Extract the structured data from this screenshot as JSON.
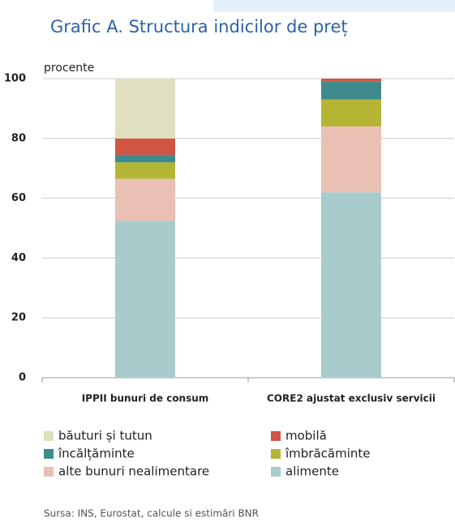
{
  "chart_data": {
    "type": "stacked_bar",
    "title": "Grafic A. Structura indicilor de preț",
    "y_label": "procente",
    "source": "Sursa: INS, Eurostat, calcule si estimări BNR",
    "categories": [
      "IPPII bunuri de consum",
      "CORE2 ajustat exclusiv servicii"
    ],
    "series": [
      {
        "name": "băuturi și tutun",
        "color": "#dfe0bf",
        "values": [
          20,
          0
        ]
      },
      {
        "name": "mobilă",
        "color": "#d05545",
        "values": [
          5.5,
          1
        ]
      },
      {
        "name": "încălțăminte",
        "color": "#3f8a8c",
        "values": [
          2.5,
          6
        ]
      },
      {
        "name": "îmbrăcăminte",
        "color": "#b5b535",
        "values": [
          5.5,
          9
        ]
      },
      {
        "name": "alte bunuri nealimentare",
        "color": "#ebc0b4",
        "values": [
          14,
          22
        ]
      },
      {
        "name": "alimente",
        "color": "#a8cccc",
        "values": [
          52.5,
          62
        ]
      }
    ],
    "ylim": [
      0,
      100
    ],
    "yticks": [
      0,
      20,
      40,
      60,
      80,
      100
    ],
    "grid": true
  }
}
